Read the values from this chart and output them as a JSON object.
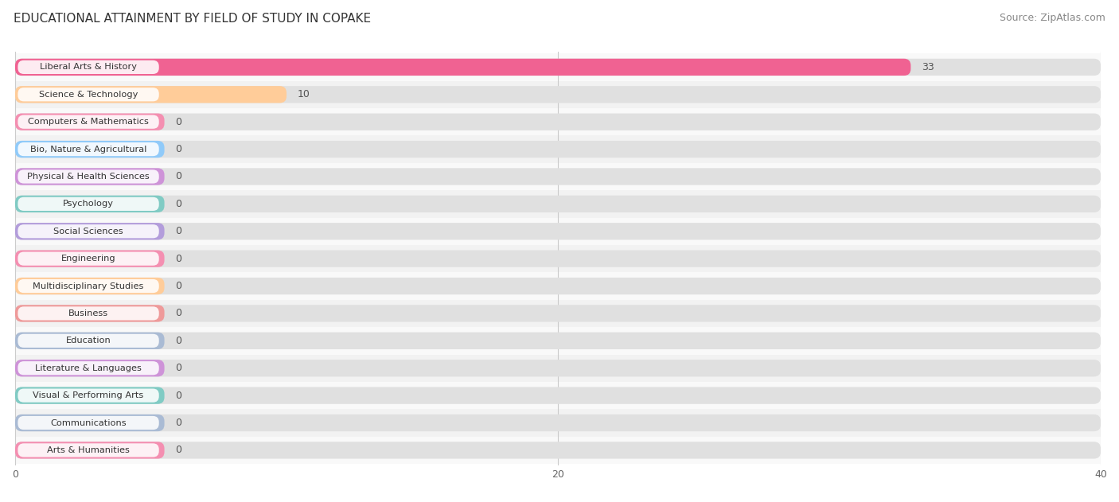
{
  "title": "EDUCATIONAL ATTAINMENT BY FIELD OF STUDY IN COPAKE",
  "source": "Source: ZipAtlas.com",
  "categories": [
    "Liberal Arts & History",
    "Science & Technology",
    "Computers & Mathematics",
    "Bio, Nature & Agricultural",
    "Physical & Health Sciences",
    "Psychology",
    "Social Sciences",
    "Engineering",
    "Multidisciplinary Studies",
    "Business",
    "Education",
    "Literature & Languages",
    "Visual & Performing Arts",
    "Communications",
    "Arts & Humanities"
  ],
  "values": [
    33,
    10,
    0,
    0,
    0,
    0,
    0,
    0,
    0,
    0,
    0,
    0,
    0,
    0,
    0
  ],
  "bar_colors": [
    "#F06292",
    "#FFCC99",
    "#F48FB1",
    "#90CAF9",
    "#CE93D8",
    "#80CBC4",
    "#B39DDB",
    "#F48FB1",
    "#FFCC99",
    "#EF9A9A",
    "#AABBD4",
    "#CE93D8",
    "#80CBC4",
    "#AABBD4",
    "#F48FB1"
  ],
  "xlim": [
    0,
    40
  ],
  "xticks": [
    0,
    20,
    40
  ],
  "title_fontsize": 11,
  "source_fontsize": 9
}
